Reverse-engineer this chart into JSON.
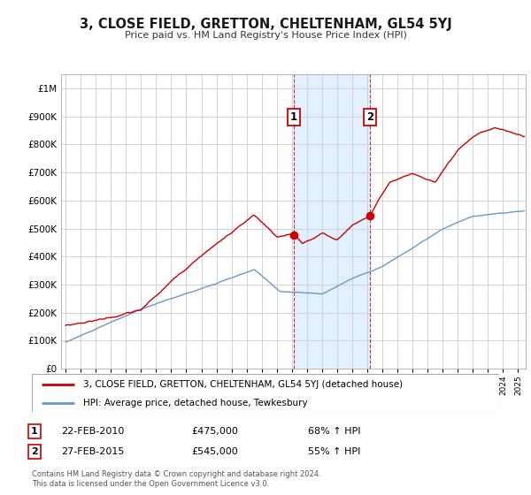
{
  "title": "3, CLOSE FIELD, GRETTON, CHELTENHAM, GL54 5YJ",
  "subtitle": "Price paid vs. HM Land Registry's House Price Index (HPI)",
  "hpi_label": "HPI: Average price, detached house, Tewkesbury",
  "property_label": "3, CLOSE FIELD, GRETTON, CHELTENHAM, GL54 5YJ (detached house)",
  "property_color": "#cc0000",
  "hpi_color": "#6699cc",
  "shaded_region": [
    2010.13,
    2015.16
  ],
  "sale1_x": 2010.13,
  "sale1_y": 475000,
  "sale2_x": 2015.16,
  "sale2_y": 545000,
  "sale1_date": "22-FEB-2010",
  "sale1_price": "£475,000",
  "sale1_hpi": "68% ↑ HPI",
  "sale2_date": "27-FEB-2015",
  "sale2_price": "£545,000",
  "sale2_hpi": "55% ↑ HPI",
  "footnote1": "Contains HM Land Registry data © Crown copyright and database right 2024.",
  "footnote2": "This data is licensed under the Open Government Licence v3.0.",
  "ylim": [
    0,
    1050000
  ],
  "xlim": [
    1994.7,
    2025.5
  ],
  "background_color": "#ffffff",
  "grid_color": "#cccccc",
  "shade_color": "#ddeeff"
}
